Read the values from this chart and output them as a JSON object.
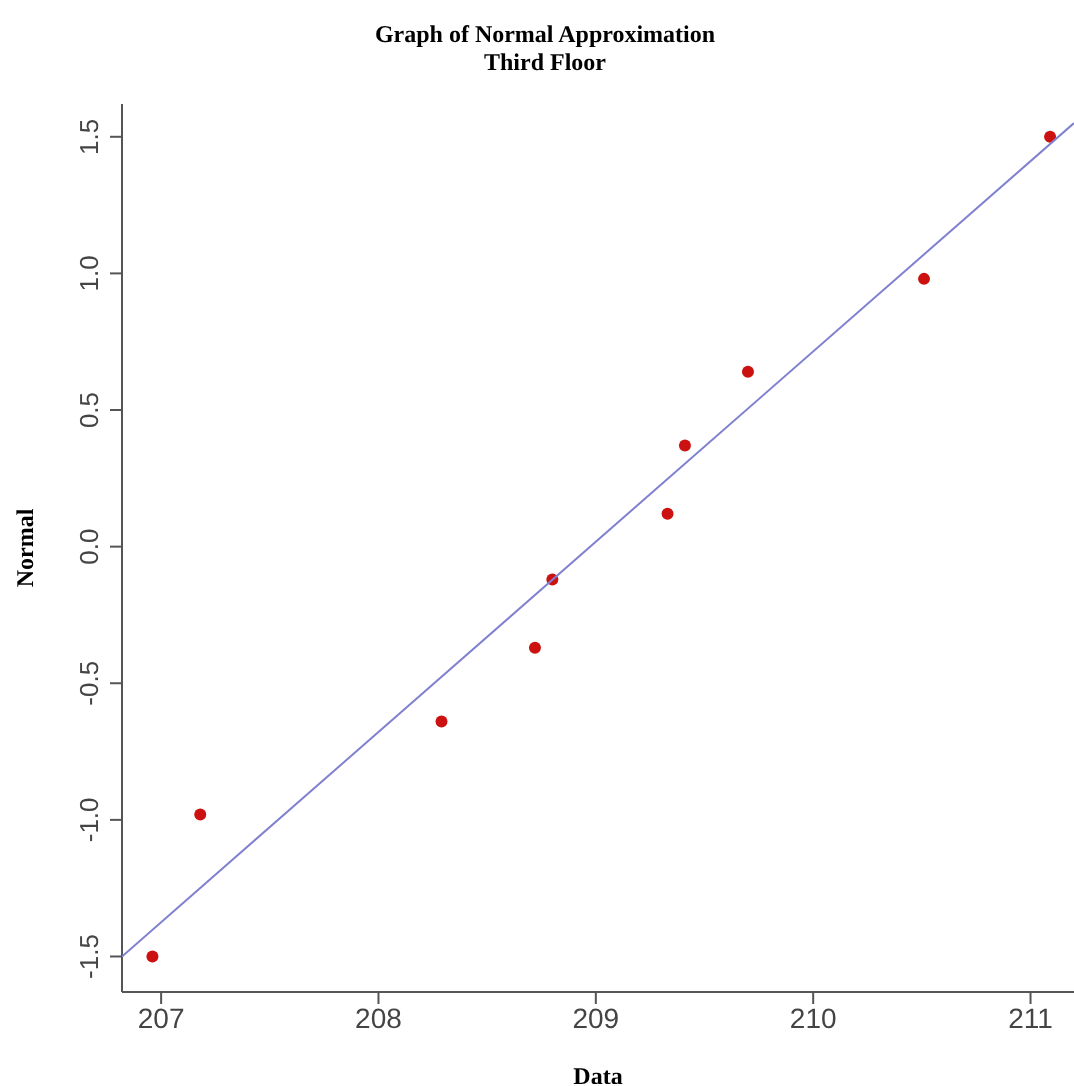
{
  "chart_data": {
    "type": "scatter",
    "title": "Graph of Normal Approximation",
    "subtitle": "Third Floor",
    "xlabel": "Data",
    "ylabel": "Normal",
    "xlim": [
      206.82,
      211.2
    ],
    "ylim": [
      -1.63,
      1.62
    ],
    "xticks": [
      207,
      208,
      209,
      210,
      211
    ],
    "yticks": [
      -1.5,
      {
        "value": -1,
        "label": "-1.0"
      },
      -0.5,
      {
        "value": 0,
        "label": "0.0"
      },
      0.5,
      {
        "value": 1,
        "label": "1.0"
      },
      1.5
    ],
    "grid": false,
    "legend": false,
    "series": [
      {
        "color": "#cc1111",
        "marker": "circle",
        "x": [
          206.96,
          207.18,
          208.29,
          208.72,
          208.8,
          209.33,
          209.41,
          209.7,
          210.51,
          211.09
        ],
        "values": [
          -1.5,
          -0.98,
          -0.64,
          -0.37,
          -0.12,
          0.12,
          0.37,
          0.64,
          0.98,
          1.5
        ]
      },
      {
        "type": "line",
        "color": "#8080d0",
        "x": [
          206.82,
          211.2
        ],
        "values": [
          -1.5,
          1.55
        ],
        "marker": "none",
        "line_style": "solid"
      }
    ]
  }
}
